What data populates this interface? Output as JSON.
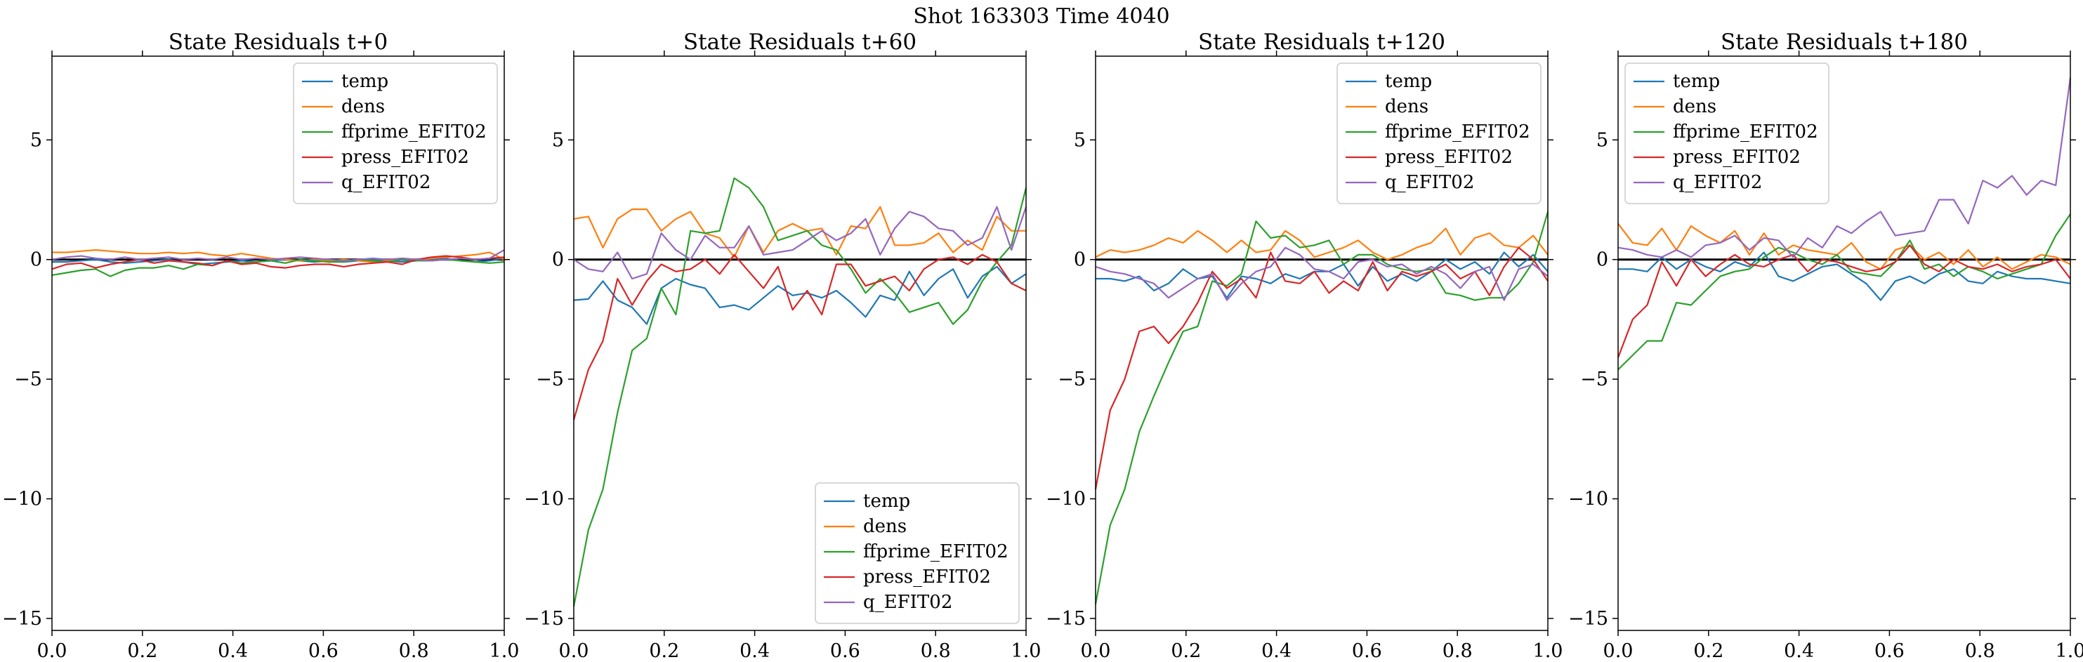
{
  "suptitle": "Shot 163303   Time 4040",
  "chart_data": [
    {
      "type": "line",
      "title": "State Residuals t+0",
      "xlim": [
        0.0,
        1.0
      ],
      "ylim": [
        -15.5,
        8.5
      ],
      "xticks": [
        0.0,
        0.2,
        0.4,
        0.6,
        0.8,
        1.0
      ],
      "xtick_labels": [
        "0.0",
        "0.2",
        "0.4",
        "0.6",
        "0.8",
        "1.0"
      ],
      "yticks": [
        5,
        0,
        -5,
        -10,
        -15
      ],
      "ytick_labels": [
        "5",
        "0",
        "−5",
        "−10",
        "−15"
      ],
      "legend": "upper right",
      "zero_line": true,
      "series": [
        {
          "name": "temp",
          "color": "#1f77b4",
          "values": [
            -0.1,
            -0.1,
            -0.05,
            0.0,
            -0.1,
            -0.15,
            -0.1,
            -0.05,
            0.0,
            -0.1,
            -0.2,
            -0.15,
            -0.1,
            -0.05,
            -0.1,
            -0.05,
            0.0,
            -0.05,
            -0.1,
            -0.05,
            -0.1,
            -0.05,
            0.0,
            -0.05,
            -0.1,
            -0.05,
            0.0,
            0.05,
            -0.05,
            -0.1,
            -0.05,
            0.05
          ]
        },
        {
          "name": "dens",
          "color": "#ff7f0e",
          "values": [
            0.3,
            0.3,
            0.35,
            0.4,
            0.35,
            0.3,
            0.25,
            0.25,
            0.3,
            0.25,
            0.3,
            0.2,
            0.15,
            0.25,
            0.15,
            0.05,
            0.0,
            -0.05,
            0.0,
            -0.05,
            0.0,
            -0.05,
            -0.1,
            -0.05,
            0.05,
            0.0,
            0.05,
            0.1,
            0.15,
            0.2,
            0.3,
            0.0
          ]
        },
        {
          "name": "ffprime_EFIT02",
          "color": "#2ca02c",
          "values": [
            -0.65,
            -0.55,
            -0.45,
            -0.4,
            -0.7,
            -0.45,
            -0.35,
            -0.35,
            -0.25,
            -0.4,
            -0.2,
            -0.25,
            -0.05,
            -0.15,
            -0.1,
            -0.05,
            -0.15,
            0.0,
            -0.05,
            -0.1,
            -0.1,
            0.0,
            -0.05,
            -0.1,
            0.0,
            -0.05,
            -0.05,
            0.0,
            -0.05,
            -0.1,
            -0.15,
            -0.1
          ]
        },
        {
          "name": "press_EFIT02",
          "color": "#d62728",
          "values": [
            -0.4,
            -0.2,
            -0.15,
            -0.35,
            -0.2,
            -0.1,
            0.0,
            -0.15,
            -0.05,
            -0.1,
            -0.15,
            -0.25,
            -0.05,
            -0.2,
            -0.15,
            -0.3,
            -0.35,
            -0.25,
            -0.2,
            -0.2,
            -0.3,
            -0.2,
            -0.15,
            -0.1,
            -0.2,
            0.0,
            0.1,
            0.15,
            0.1,
            0.0,
            0.05,
            0.1
          ]
        },
        {
          "name": "q_EFIT02",
          "color": "#9467bd",
          "values": [
            0.0,
            0.1,
            0.15,
            0.05,
            0.0,
            0.1,
            0.0,
            0.05,
            0.1,
            0.0,
            0.05,
            0.0,
            0.1,
            0.0,
            0.05,
            0.0,
            0.05,
            0.1,
            0.05,
            0.0,
            -0.05,
            0.0,
            0.05,
            0.0,
            0.05,
            0.0,
            -0.05,
            0.0,
            0.05,
            0.0,
            0.05,
            0.4
          ]
        }
      ]
    },
    {
      "type": "line",
      "title": "State Residuals t+60",
      "xlim": [
        0.0,
        1.0
      ],
      "ylim": [
        -15.5,
        8.5
      ],
      "xticks": [
        0.0,
        0.2,
        0.4,
        0.6,
        0.8,
        1.0
      ],
      "xtick_labels": [
        "0.0",
        "0.2",
        "0.4",
        "0.6",
        "0.8",
        "1.0"
      ],
      "yticks": [
        5,
        0,
        -5,
        -10,
        -15
      ],
      "ytick_labels": [
        "5",
        "0",
        "−5",
        "−10",
        "−15"
      ],
      "legend": "lower right",
      "zero_line": true,
      "series": [
        {
          "name": "temp",
          "color": "#1f77b4",
          "values": [
            -1.7,
            -1.65,
            -0.9,
            -1.7,
            -2.0,
            -2.7,
            -1.2,
            -0.8,
            -1.05,
            -1.2,
            -2.0,
            -1.9,
            -2.1,
            -1.6,
            -1.1,
            -1.5,
            -1.4,
            -1.6,
            -1.3,
            -1.8,
            -2.4,
            -1.5,
            -1.7,
            -0.5,
            -1.5,
            -0.8,
            -0.4,
            -1.6,
            -0.7,
            -0.3,
            -1.0,
            -0.6
          ]
        },
        {
          "name": "dens",
          "color": "#ff7f0e",
          "values": [
            1.7,
            1.8,
            0.5,
            1.7,
            2.1,
            2.1,
            1.2,
            1.7,
            2.0,
            1.1,
            0.9,
            0.1,
            1.4,
            0.3,
            1.2,
            1.5,
            1.2,
            1.3,
            0.2,
            1.4,
            1.3,
            2.2,
            0.6,
            0.6,
            0.7,
            1.1,
            0.3,
            0.8,
            0.4,
            1.8,
            1.2,
            1.2
          ]
        },
        {
          "name": "ffprime_EFIT02",
          "color": "#2ca02c",
          "values": [
            -14.5,
            -11.3,
            -9.6,
            -6.4,
            -3.8,
            -3.3,
            -1.2,
            -2.3,
            1.2,
            1.1,
            1.2,
            3.4,
            3.0,
            2.2,
            0.8,
            1.0,
            1.2,
            0.6,
            0.4,
            -0.4,
            -1.4,
            -0.8,
            -1.4,
            -2.2,
            -2.0,
            -1.8,
            -2.7,
            -2.1,
            -0.9,
            -0.1,
            0.6,
            3.0
          ]
        },
        {
          "name": "press_EFIT02",
          "color": "#d62728",
          "values": [
            -6.7,
            -4.6,
            -3.4,
            -0.8,
            -1.9,
            -0.9,
            -0.2,
            -0.5,
            -0.4,
            0.0,
            -0.6,
            0.2,
            -0.5,
            -1.2,
            -0.3,
            -2.1,
            -1.3,
            -2.3,
            -0.2,
            -0.2,
            -1.1,
            -0.9,
            -0.7,
            -1.3,
            -0.4,
            0.0,
            0.1,
            -0.2,
            0.2,
            -0.1,
            -1.0,
            -1.3
          ]
        },
        {
          "name": "q_EFIT02",
          "color": "#9467bd",
          "values": [
            0.0,
            -0.4,
            -0.5,
            0.3,
            -0.8,
            -0.6,
            1.1,
            0.4,
            0.0,
            1.0,
            0.5,
            0.5,
            1.4,
            0.2,
            0.3,
            0.4,
            0.8,
            1.2,
            0.8,
            1.1,
            1.7,
            0.2,
            1.3,
            2.0,
            1.8,
            1.3,
            1.2,
            0.6,
            0.9,
            2.2,
            0.4,
            2.2
          ]
        }
      ]
    },
    {
      "type": "line",
      "title": "State Residuals t+120",
      "xlim": [
        0.0,
        1.0
      ],
      "ylim": [
        -15.5,
        8.5
      ],
      "xticks": [
        0.0,
        0.2,
        0.4,
        0.6,
        0.8,
        1.0
      ],
      "xtick_labels": [
        "0.0",
        "0.2",
        "0.4",
        "0.6",
        "0.8",
        "1.0"
      ],
      "yticks": [
        5,
        0,
        -5,
        -10,
        -15
      ],
      "ytick_labels": [
        "5",
        "0",
        "−5",
        "−10",
        "−15"
      ],
      "legend": "upper right",
      "zero_line": true,
      "series": [
        {
          "name": "temp",
          "color": "#1f77b4",
          "values": [
            -0.8,
            -0.8,
            -0.9,
            -0.7,
            -1.3,
            -1.0,
            -0.4,
            -0.8,
            -0.7,
            -1.6,
            -0.7,
            -0.8,
            -1.0,
            -0.6,
            -0.8,
            -0.5,
            -0.5,
            -0.2,
            -1.1,
            -0.3,
            -0.9,
            -0.6,
            -0.9,
            -0.5,
            0.0,
            -0.4,
            -0.1,
            -0.6,
            0.3,
            -0.3,
            0.2,
            -0.5
          ]
        },
        {
          "name": "dens",
          "color": "#ff7f0e",
          "values": [
            0.1,
            0.4,
            0.3,
            0.4,
            0.6,
            0.9,
            0.7,
            1.2,
            0.8,
            0.3,
            0.8,
            0.3,
            0.4,
            1.2,
            0.8,
            0.1,
            0.3,
            0.5,
            0.8,
            0.3,
            0.0,
            0.2,
            0.5,
            0.7,
            1.3,
            0.2,
            0.9,
            1.1,
            0.6,
            0.5,
            1.0,
            0.2
          ]
        },
        {
          "name": "ffprime_EFIT02",
          "color": "#2ca02c",
          "values": [
            -14.4,
            -11.1,
            -9.6,
            -7.2,
            -5.7,
            -4.3,
            -3.0,
            -2.8,
            -0.9,
            -1.1,
            -0.6,
            1.6,
            0.9,
            1.0,
            0.5,
            0.6,
            0.8,
            -0.2,
            0.2,
            0.2,
            -0.2,
            -0.4,
            -0.5,
            -0.4,
            -1.4,
            -1.5,
            -1.7,
            -1.6,
            -1.6,
            -1.0,
            -0.1,
            2.0
          ]
        },
        {
          "name": "press_EFIT02",
          "color": "#d62728",
          "values": [
            -9.6,
            -6.3,
            -5.0,
            -3.0,
            -2.8,
            -3.5,
            -2.8,
            -1.8,
            -0.5,
            -1.2,
            -0.8,
            -1.6,
            0.3,
            -0.9,
            -1.0,
            -0.5,
            -1.4,
            -0.9,
            -1.3,
            -0.1,
            -1.3,
            -0.5,
            -0.7,
            -0.5,
            -0.2,
            -0.8,
            -0.5,
            -1.5,
            -0.3,
            0.5,
            0.0,
            -0.9
          ]
        },
        {
          "name": "q_EFIT02",
          "color": "#9467bd",
          "values": [
            -0.3,
            -0.5,
            -0.6,
            -0.8,
            -1.0,
            -1.6,
            -1.2,
            -0.8,
            -0.6,
            -1.7,
            -1.0,
            -0.5,
            -0.3,
            0.5,
            0.2,
            -0.4,
            -0.5,
            -0.8,
            -0.1,
            0.0,
            -0.3,
            -0.2,
            -0.6,
            -0.3,
            -0.6,
            -1.2,
            -0.5,
            -0.3,
            -1.7,
            -0.4,
            -0.2,
            -0.7
          ]
        }
      ]
    },
    {
      "type": "line",
      "title": "State Residuals t+180",
      "xlim": [
        0.0,
        1.0
      ],
      "ylim": [
        -15.5,
        8.5
      ],
      "xticks": [
        0.0,
        0.2,
        0.4,
        0.6,
        0.8,
        1.0
      ],
      "xtick_labels": [
        "0.0",
        "0.2",
        "0.4",
        "0.6",
        "0.8",
        "1.0"
      ],
      "yticks": [
        5,
        0,
        -5,
        -10,
        -15
      ],
      "ytick_labels": [
        "5",
        "0",
        "−5",
        "−10",
        "−15"
      ],
      "legend": "upper left",
      "zero_line": true,
      "series": [
        {
          "name": "temp",
          "color": "#1f77b4",
          "values": [
            -0.4,
            -0.4,
            -0.5,
            0.1,
            -0.4,
            0.0,
            -0.3,
            -0.5,
            -0.1,
            -0.3,
            0.3,
            -0.7,
            -0.9,
            -0.6,
            -0.3,
            -0.2,
            -0.6,
            -1.0,
            -1.7,
            -0.9,
            -0.7,
            -1.0,
            -0.6,
            -0.4,
            -0.9,
            -1.0,
            -0.5,
            -0.7,
            -0.8,
            -0.8,
            -0.9,
            -1.0
          ]
        },
        {
          "name": "dens",
          "color": "#ff7f0e",
          "values": [
            1.5,
            0.7,
            0.6,
            1.3,
            0.4,
            1.4,
            1.0,
            0.7,
            1.2,
            0.2,
            1.1,
            0.2,
            0.6,
            0.4,
            0.3,
            0.2,
            0.7,
            -0.1,
            -0.4,
            0.4,
            0.6,
            0.0,
            0.3,
            -0.2,
            0.4,
            -0.3,
            0.1,
            -0.4,
            -0.1,
            0.2,
            0.1,
            -0.2
          ]
        },
        {
          "name": "ffprime_EFIT02",
          "color": "#2ca02c",
          "values": [
            -4.6,
            -4.0,
            -3.4,
            -3.4,
            -1.8,
            -1.9,
            -1.3,
            -0.7,
            -0.5,
            -0.4,
            0.1,
            0.5,
            0.3,
            0.0,
            -0.2,
            0.2,
            -0.5,
            -0.6,
            -0.7,
            -0.1,
            0.8,
            -0.4,
            -0.2,
            -0.7,
            -0.3,
            -0.5,
            -0.8,
            -0.6,
            -0.4,
            -0.2,
            1.0,
            1.9
          ]
        },
        {
          "name": "press_EFIT02",
          "color": "#d62728",
          "values": [
            -4.1,
            -2.5,
            -1.9,
            -0.1,
            -1.1,
            0.0,
            -0.7,
            -0.2,
            0.2,
            -0.2,
            -0.3,
            0.0,
            0.2,
            -0.5,
            0.0,
            -0.1,
            -0.3,
            -0.5,
            -0.4,
            -0.1,
            0.6,
            -0.2,
            -0.5,
            0.0,
            -0.3,
            -0.4,
            -0.2,
            -0.5,
            -0.3,
            -0.2,
            0.0,
            -0.8
          ]
        },
        {
          "name": "q_EFIT02",
          "color": "#9467bd",
          "values": [
            0.5,
            0.4,
            0.2,
            0.1,
            0.4,
            0.1,
            0.6,
            0.7,
            1.0,
            0.4,
            0.9,
            0.8,
            0.1,
            0.9,
            0.5,
            1.4,
            1.1,
            1.6,
            2.0,
            1.0,
            1.1,
            1.2,
            2.5,
            2.5,
            1.5,
            3.3,
            3.0,
            3.5,
            2.7,
            3.3,
            3.1,
            7.6
          ]
        }
      ]
    }
  ]
}
